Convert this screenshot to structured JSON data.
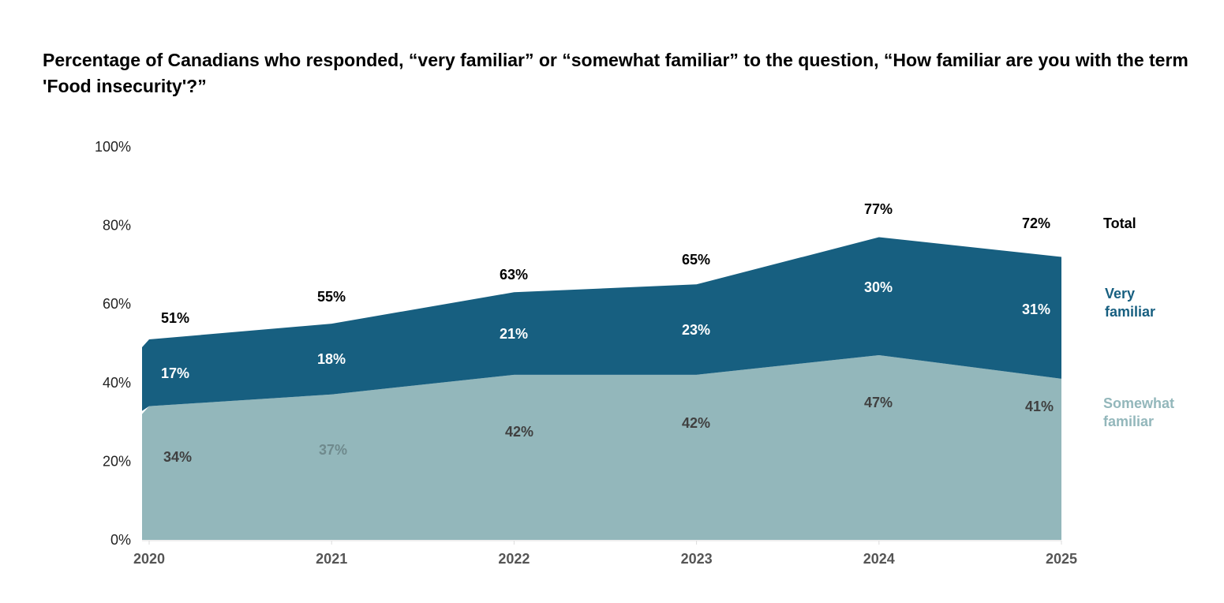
{
  "chart_data": {
    "type": "area",
    "stacked": true,
    "title": "Percentage of Canadians who responded, “very familiar” or “somewhat familiar” to the question, “How familiar are you with the term 'Food insecurity'?”",
    "xlabel": "",
    "ylabel": "",
    "x": [
      "2020",
      "2021",
      "2022",
      "2023",
      "2024",
      "2025"
    ],
    "ylim": [
      0,
      100
    ],
    "yticks": [
      "0%",
      "20%",
      "40%",
      "60%",
      "80%",
      "100%"
    ],
    "ytick_values": [
      0,
      20,
      40,
      60,
      80,
      100
    ],
    "grid": false,
    "legend_position": "right",
    "series": [
      {
        "name": "Somewhat familiar",
        "values": [
          34,
          37,
          42,
          42,
          47,
          41
        ],
        "color": "#93b7bb",
        "label_color": "#404040"
      },
      {
        "name": "Very familiar",
        "values": [
          17,
          18,
          21,
          23,
          30,
          31
        ],
        "color": "#175f80",
        "label_color": "#ffffff"
      }
    ],
    "totals": {
      "name": "Total",
      "values": [
        51,
        55,
        63,
        65,
        77,
        72
      ],
      "color": "#000000"
    },
    "legend": [
      {
        "label_line1": "Total",
        "label_line2": "",
        "color": "#000000"
      },
      {
        "label_line1": "Very",
        "label_line2": "familiar",
        "color": "#175f80"
      },
      {
        "label_line1": "Somewhat",
        "label_line2": "familiar",
        "color": "#93b7bb"
      }
    ]
  }
}
